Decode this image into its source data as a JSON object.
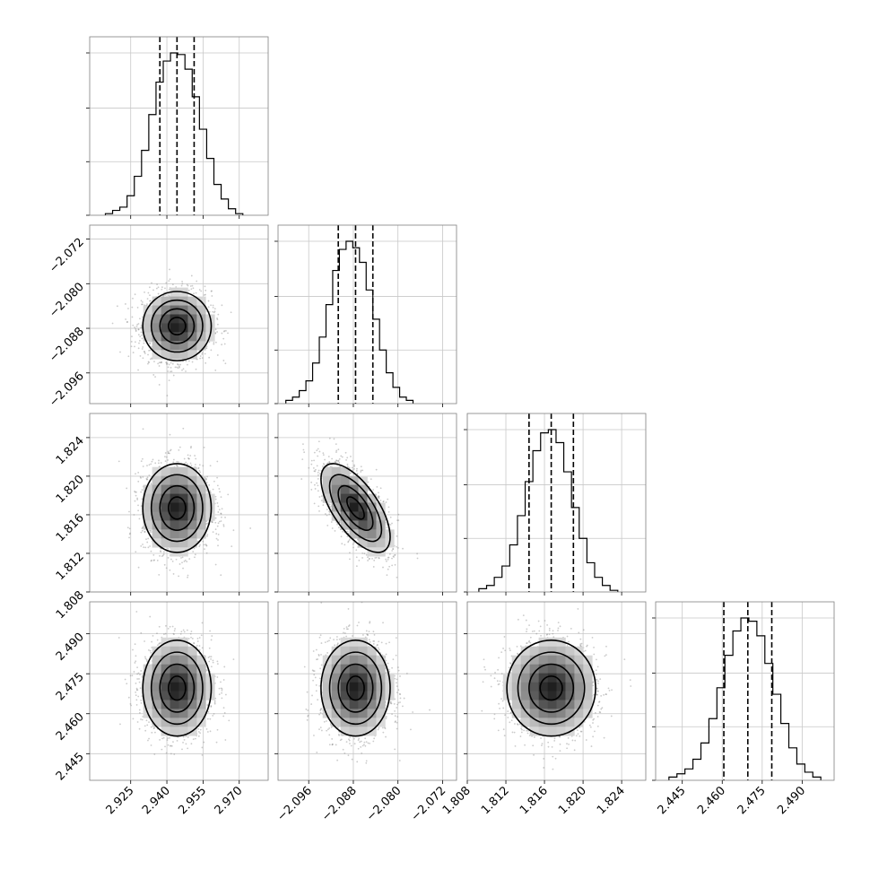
{
  "colors": {
    "frame": "#808080",
    "grid": "#c8c8c8",
    "line": "#000000",
    "scatter": "#8c8c8c",
    "background": "#ffffff"
  },
  "chart_data": {
    "type": "corner",
    "parameters": [
      {
        "range": [
          2.908,
          2.982
        ],
        "ticks": [
          2.925,
          2.94,
          2.955,
          2.97
        ],
        "tick_labels": [
          "2.925",
          "2.940",
          "2.955",
          "2.970"
        ],
        "quantiles": [
          2.9371,
          2.9442,
          2.9513
        ],
        "hist_x": [
          2.916,
          2.919,
          2.922,
          2.925,
          2.928,
          2.931,
          2.934,
          2.937,
          2.94,
          2.943,
          2.946,
          2.949,
          2.952,
          2.955,
          2.958,
          2.961,
          2.964,
          2.967,
          2.97
        ],
        "hist_y": [
          0.01,
          0.03,
          0.05,
          0.12,
          0.24,
          0.4,
          0.62,
          0.82,
          0.95,
          1.0,
          0.99,
          0.9,
          0.73,
          0.53,
          0.35,
          0.19,
          0.1,
          0.04,
          0.01
        ]
      },
      {
        "range": [
          -2.1015,
          -2.0695
        ],
        "ticks": [
          -2.096,
          -2.088,
          -2.08,
          -2.072
        ],
        "tick_labels": [
          "−2.096",
          "−2.088",
          "−2.080",
          "−2.072"
        ],
        "quantiles": [
          -2.0907,
          -2.0876,
          -2.0845
        ],
        "hist_x": [
          -2.0995,
          -2.0983,
          -2.0971,
          -2.0959,
          -2.0947,
          -2.0935,
          -2.0923,
          -2.0911,
          -2.0899,
          -2.0887,
          -2.0875,
          -2.0863,
          -2.0851,
          -2.0839,
          -2.0827,
          -2.0815,
          -2.0803,
          -2.0791,
          -2.0779
        ],
        "hist_y": [
          0.02,
          0.04,
          0.08,
          0.14,
          0.25,
          0.41,
          0.61,
          0.82,
          0.95,
          1.0,
          0.96,
          0.87,
          0.7,
          0.52,
          0.33,
          0.19,
          0.1,
          0.04,
          0.02
        ]
      },
      {
        "range": [
          1.808,
          1.8265
        ],
        "ticks": [
          1.808,
          1.812,
          1.816,
          1.82,
          1.824
        ],
        "tick_labels": [
          "1.808",
          "1.812",
          "1.816",
          "1.820",
          "1.824"
        ],
        "quantiles": [
          1.8144,
          1.8167,
          1.819
        ],
        "hist_x": [
          1.8096,
          1.8104,
          1.8112,
          1.812,
          1.8128,
          1.8136,
          1.8144,
          1.8152,
          1.816,
          1.8168,
          1.8176,
          1.8184,
          1.8192,
          1.82,
          1.8208,
          1.8216,
          1.8224,
          1.8232
        ],
        "hist_y": [
          0.02,
          0.04,
          0.09,
          0.16,
          0.29,
          0.47,
          0.68,
          0.87,
          0.98,
          1.0,
          0.92,
          0.74,
          0.52,
          0.33,
          0.18,
          0.09,
          0.04,
          0.01
        ]
      },
      {
        "range": [
          2.435,
          2.502
        ],
        "ticks": [
          2.445,
          2.46,
          2.475,
          2.49
        ],
        "tick_labels": [
          "2.445",
          "2.460",
          "2.475",
          "2.490"
        ],
        "quantiles": [
          2.4606,
          2.4696,
          2.4786
        ],
        "hist_x": [
          2.4415,
          2.4445,
          2.4475,
          2.4505,
          2.4535,
          2.4565,
          2.4595,
          2.4625,
          2.4655,
          2.4685,
          2.4715,
          2.4745,
          2.4775,
          2.4805,
          2.4835,
          2.4865,
          2.4895,
          2.4925,
          2.4955
        ],
        "hist_y": [
          0.02,
          0.04,
          0.07,
          0.13,
          0.23,
          0.38,
          0.57,
          0.77,
          0.92,
          1.0,
          0.98,
          0.89,
          0.72,
          0.53,
          0.35,
          0.2,
          0.1,
          0.05,
          0.02
        ]
      }
    ],
    "pairs": [
      {
        "row": 1,
        "col": 0,
        "mean_x": 2.9442,
        "mean_y": -2.0876,
        "sd_x": 0.0071,
        "sd_y": 0.0031,
        "corr": 0.0
      },
      {
        "row": 2,
        "col": 0,
        "mean_x": 2.9442,
        "mean_y": 1.8167,
        "sd_x": 0.0071,
        "sd_y": 0.0023,
        "corr": 0.0
      },
      {
        "row": 2,
        "col": 1,
        "mean_x": -2.0876,
        "mean_y": 1.8167,
        "sd_x": 0.0031,
        "sd_y": 0.0023,
        "corr": -0.65
      },
      {
        "row": 3,
        "col": 0,
        "mean_x": 2.9442,
        "mean_y": 2.4696,
        "sd_x": 0.0071,
        "sd_y": 0.009,
        "corr": 0.0
      },
      {
        "row": 3,
        "col": 1,
        "mean_x": -2.0876,
        "mean_y": 2.4696,
        "sd_x": 0.0031,
        "sd_y": 0.009,
        "corr": 0.0
      },
      {
        "row": 3,
        "col": 2,
        "mean_x": 1.8167,
        "mean_y": 2.4696,
        "sd_x": 0.0023,
        "sd_y": 0.009,
        "corr": 0.0
      }
    ],
    "contour_levels_sigma": [
      0.5,
      1.0,
      1.5,
      2.0
    ],
    "grid": true
  }
}
